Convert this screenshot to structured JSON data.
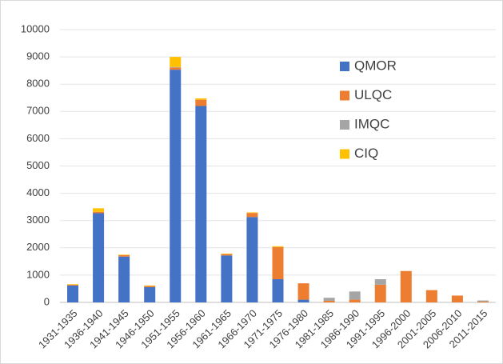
{
  "chart_data": {
    "type": "stacked_bar",
    "categories": [
      "1931-1935",
      "1936-1940",
      "1941-1945",
      "1946-1950",
      "1951-1955",
      "1956-1960",
      "1961-1965",
      "1966-1970",
      "1971-1975",
      "1976-1980",
      "1981-1985",
      "1986-1990",
      "1991-1995",
      "1996-2000",
      "2001-2005",
      "2006-2010",
      "2011-2015"
    ],
    "series": [
      {
        "name": "QMOR",
        "color": "#4472c4",
        "values": [
          620,
          3270,
          1680,
          560,
          8530,
          7200,
          1720,
          3130,
          850,
          100,
          0,
          0,
          0,
          0,
          0,
          0,
          0
        ]
      },
      {
        "name": "ULQC",
        "color": "#ed7d31",
        "values": [
          30,
          50,
          50,
          40,
          80,
          230,
          50,
          150,
          1180,
          600,
          60,
          100,
          650,
          1150,
          450,
          250,
          30
        ]
      },
      {
        "name": "IMQC",
        "color": "#a5a5a5",
        "values": [
          0,
          0,
          0,
          0,
          20,
          0,
          0,
          0,
          0,
          0,
          110,
          300,
          200,
          0,
          0,
          0,
          40
        ]
      },
      {
        "name": "CIQ",
        "color": "#ffc000",
        "values": [
          20,
          130,
          20,
          20,
          370,
          50,
          20,
          20,
          30,
          0,
          0,
          0,
          0,
          0,
          0,
          0,
          0
        ]
      }
    ],
    "ylim": [
      0,
      10000
    ],
    "yticks": [
      0,
      1000,
      2000,
      3000,
      4000,
      5000,
      6000,
      7000,
      8000,
      9000,
      10000
    ],
    "grid": true,
    "legend": "upper right"
  }
}
